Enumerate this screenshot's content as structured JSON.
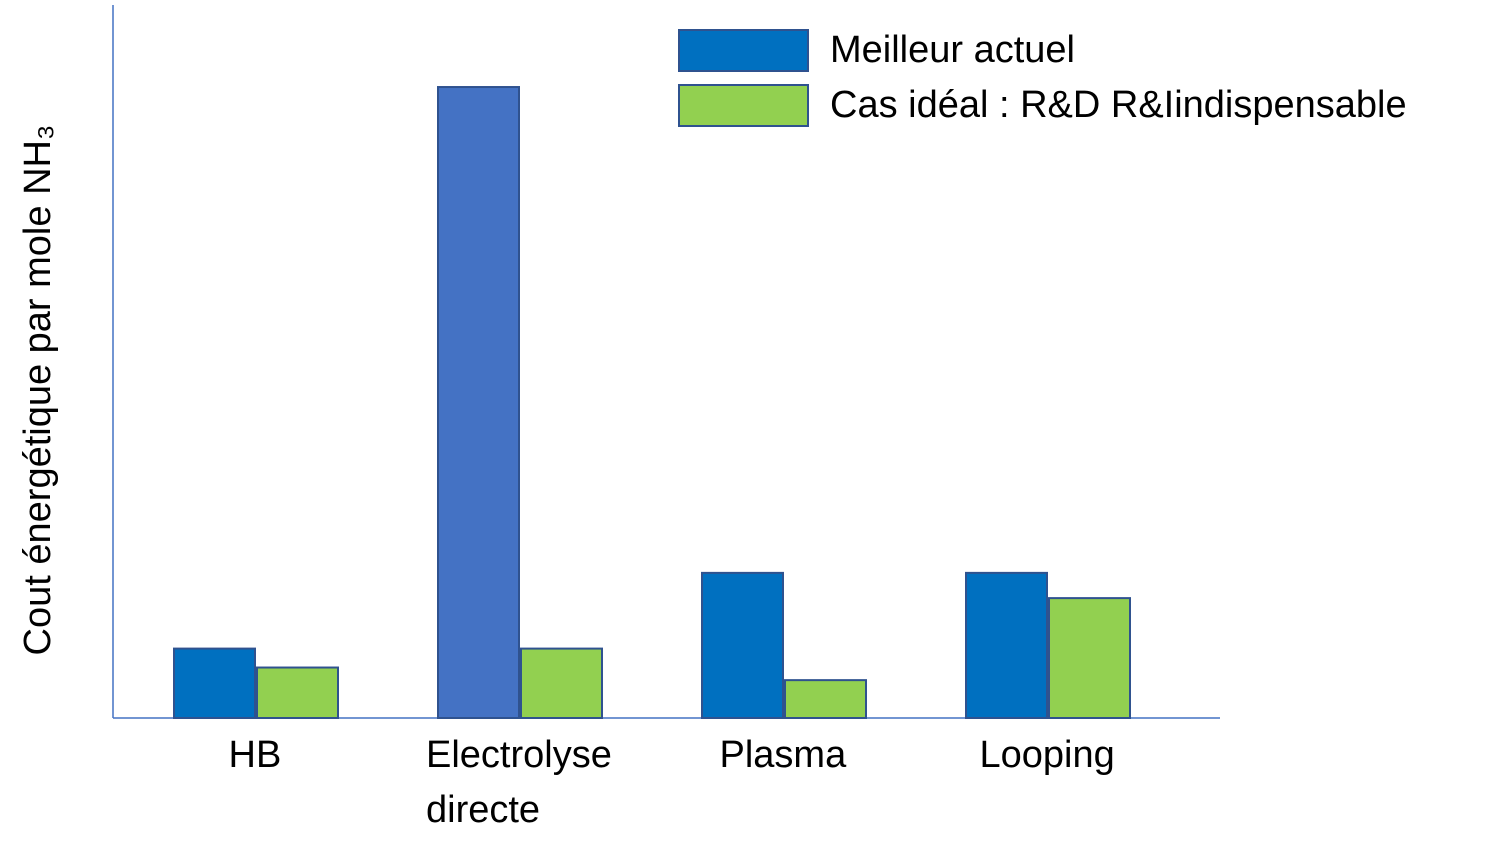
{
  "chart_data": {
    "type": "bar",
    "y_label": "Cout énergétique par mole NH₃",
    "categories": [
      "HB",
      "Electrolyse\ndirecte",
      "Plasma",
      "Looping"
    ],
    "series": [
      {
        "name": "Meilleur actuel",
        "color": "#0070c0",
        "colors": [
          "#0070c0",
          "#4472c4",
          "#0070c0",
          "#0070c0"
        ],
        "values": [
          11,
          100,
          23,
          23
        ]
      },
      {
        "name": "Cas idéal : R&D R&Iindispensable",
        "color": "#92d050",
        "values": [
          8,
          11,
          6,
          19
        ]
      }
    ],
    "ylim": [
      0,
      113
    ]
  }
}
